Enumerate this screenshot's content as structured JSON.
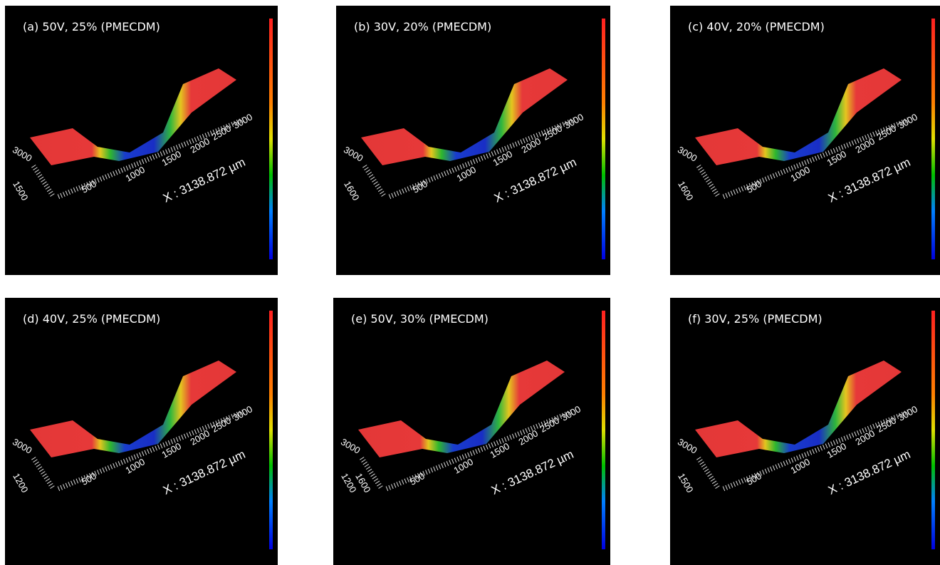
{
  "panels": [
    {
      "label": "(a) 50V, 25% (PMECDM)",
      "x_ticks": [
        "500",
        "1000",
        "1500",
        "2000",
        "2500",
        "3000"
      ],
      "side_ticks": [
        "3000",
        "1500"
      ],
      "axis_label": "X : 3138.872 µm"
    },
    {
      "label": "(b) 30V, 20% (PMECDM)",
      "x_ticks": [
        "500",
        "1000",
        "1500",
        "2000",
        "2500",
        "3000"
      ],
      "side_ticks": [
        "3000",
        "1600"
      ],
      "axis_label": "X : 3138.872 µm"
    },
    {
      "label": "(c) 40V, 20% (PMECDM)",
      "x_ticks": [
        "500",
        "1000",
        "1500",
        "2000",
        "2500",
        "3000"
      ],
      "side_ticks": [
        "3000",
        "1600"
      ],
      "axis_label": "X : 3138.872 µm"
    },
    {
      "label": "(d) 40V, 25% (PMECDM)",
      "x_ticks": [
        "500",
        "1000",
        "1500",
        "2000",
        "2500",
        "3000"
      ],
      "side_ticks": [
        "3000",
        "1200"
      ],
      "axis_label": "X : 3138.872 µm"
    },
    {
      "label": "(e) 50V, 30% (PMECDM)",
      "x_ticks": [
        "500",
        "1000",
        "1500",
        "2000",
        "2500",
        "3000"
      ],
      "side_ticks": [
        "3000",
        "1200",
        "1600"
      ],
      "axis_label": "X : 3138.872 µm"
    },
    {
      "label": "(f) 30V, 25% (PMECDM)",
      "x_ticks": [
        "500",
        "1000",
        "1500",
        "2000",
        "2500",
        "3000"
      ],
      "side_ticks": [
        "3000",
        "1500"
      ],
      "axis_label": "X : 3138.872 µm"
    }
  ]
}
